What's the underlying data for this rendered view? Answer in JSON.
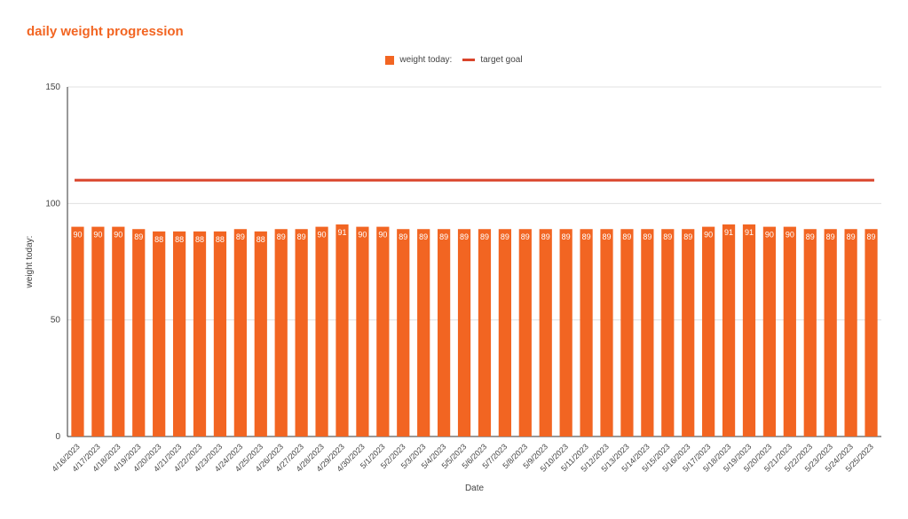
{
  "chart_data": {
    "type": "bar",
    "title": "daily weight progression",
    "xlabel": "Date",
    "ylabel": "weight today:",
    "ylim": [
      0,
      150
    ],
    "yticks": [
      0,
      50,
      100,
      150
    ],
    "grid": true,
    "legend_position": "top-center",
    "categories": [
      "4/16/2023",
      "4/17/2023",
      "4/18/2023",
      "4/19/2023",
      "4/20/2023",
      "4/21/2023",
      "4/22/2023",
      "4/23/2023",
      "4/24/2023",
      "4/25/2023",
      "4/26/2023",
      "4/27/2023",
      "4/28/2023",
      "4/29/2023",
      "4/30/2023",
      "5/1/2023",
      "5/2/2023",
      "5/3/2023",
      "5/4/2023",
      "5/5/2023",
      "5/6/2023",
      "5/7/2023",
      "5/8/2023",
      "5/9/2023",
      "5/10/2023",
      "5/11/2023",
      "5/12/2023",
      "5/13/2023",
      "5/14/2023",
      "5/15/2023",
      "5/16/2023",
      "5/17/2023",
      "5/18/2023",
      "5/19/2023",
      "5/20/2023",
      "5/21/2023",
      "5/22/2023",
      "5/23/2023",
      "5/24/2023",
      "5/25/2023"
    ],
    "series": [
      {
        "name": "weight today:",
        "kind": "bar",
        "color": "#f26522",
        "values": [
          90,
          90,
          90,
          89,
          88,
          88,
          88,
          88,
          89,
          88,
          89,
          89,
          90,
          91,
          90,
          90,
          89,
          89,
          89,
          89,
          89,
          89,
          89,
          89,
          89,
          89,
          89,
          89,
          89,
          89,
          89,
          90,
          91,
          91,
          90,
          90,
          89,
          89,
          89,
          89
        ]
      },
      {
        "name": "target goal",
        "kind": "line",
        "color": "#d9442b",
        "value": 110
      }
    ]
  }
}
